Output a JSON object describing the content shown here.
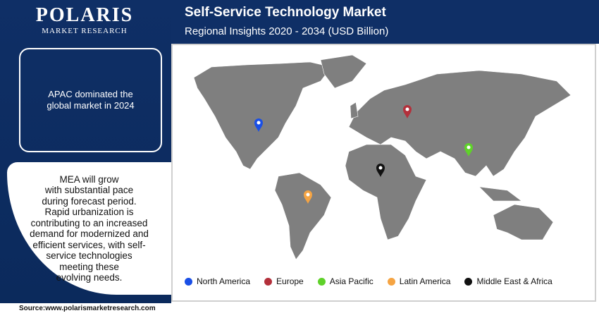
{
  "logo": {
    "name": "POLARIS",
    "tagline": "MARKET RESEARCH"
  },
  "header": {
    "title": "Self-Service Technology Market",
    "subtitle": "Regional Insights 2020 - 2034 (USD Billion)"
  },
  "callouts": [
    [
      "APAC dominated the",
      "global market in 2024"
    ],
    [
      "MEA will grow",
      "with substantial pace",
      "during forecast period.",
      "Rapid urbanization is",
      "contributing to an increased",
      "demand for modernized and",
      "efficient services, with self-",
      "service technologies",
      "meeting these",
      "evolving needs."
    ]
  ],
  "legend": [
    {
      "label": "North America",
      "color": "#1a4fe6"
    },
    {
      "label": "Europe",
      "color": "#b3303b"
    },
    {
      "label": "Asia Pacific",
      "color": "#5fd12a"
    },
    {
      "label": "Latin America",
      "color": "#f5a443"
    },
    {
      "label": "Middle East & Africa",
      "color": "#111111"
    }
  ],
  "source": "Source:www.polarismarketresearch.com"
}
